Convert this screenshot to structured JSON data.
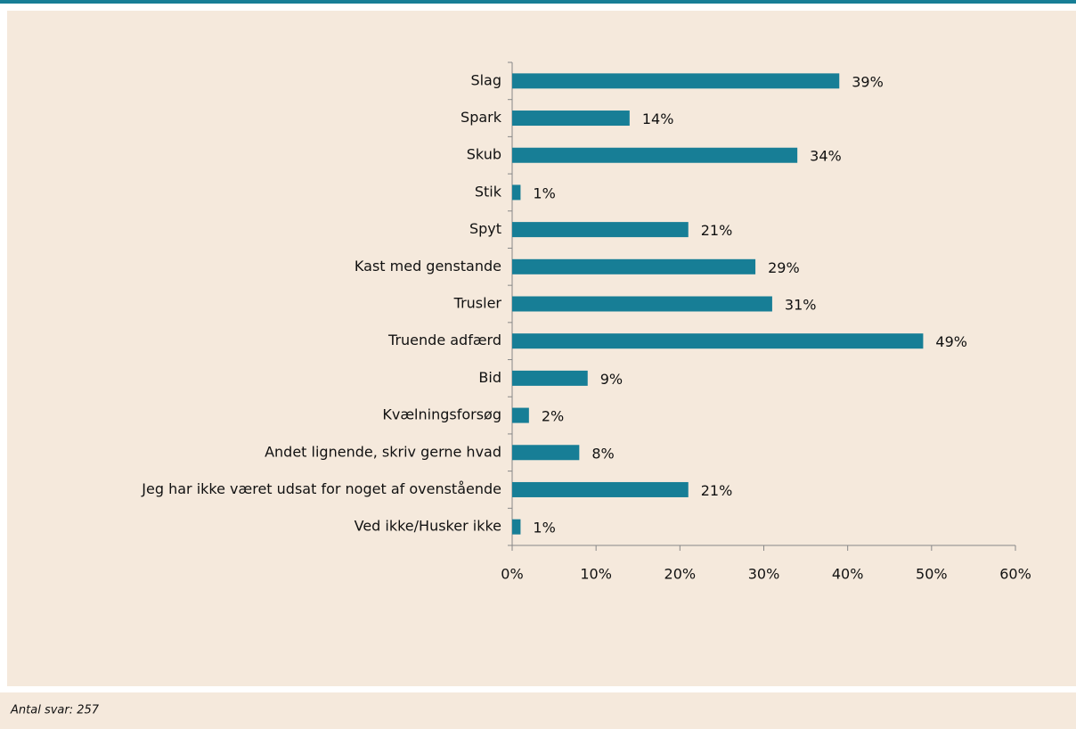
{
  "chart_data": {
    "type": "bar",
    "orientation": "horizontal",
    "categories": [
      "Slag",
      "Spark",
      "Skub",
      "Stik",
      "Spyt",
      "Kast med genstande",
      "Trusler",
      "Truende adfærd",
      "Bid",
      "Kvælningsforsøg",
      "Andet lignende, skriv gerne hvad",
      "Jeg har ikke været udsat for noget af ovenstående",
      "Ved ikke/Husker ikke"
    ],
    "values": [
      39,
      14,
      34,
      1,
      21,
      29,
      31,
      49,
      9,
      2,
      8,
      21,
      1
    ],
    "value_labels": [
      "39%",
      "14%",
      "34%",
      "1%",
      "21%",
      "29%",
      "31%",
      "49%",
      "9%",
      "2%",
      "8%",
      "21%",
      "1%"
    ],
    "color": "#177e96",
    "xlim": [
      0,
      60
    ],
    "xticks": [
      {
        "value": 0,
        "label": "0%"
      },
      {
        "value": 10,
        "label": "10%"
      },
      {
        "value": 20,
        "label": "20%"
      },
      {
        "value": 30,
        "label": "30%"
      },
      {
        "value": 40,
        "label": "40%"
      },
      {
        "value": 50,
        "label": "50%"
      },
      {
        "value": 60,
        "label": "60%"
      }
    ],
    "grid": false,
    "footnote": "Antal svar: 257"
  }
}
